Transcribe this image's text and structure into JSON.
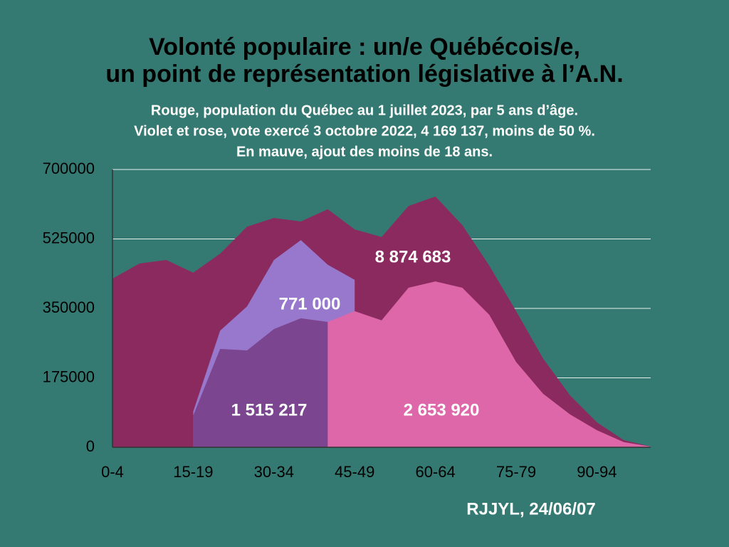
{
  "chart_data": {
    "type": "area",
    "title": [
      "Volonté populaire : un/e Québécois/e,",
      "un point de représentation législative à l’A.N."
    ],
    "subtitle": [
      "Rouge, population du Québec au 1 juillet 2023, par 5 ans d’âge.",
      "Violet et rose, vote exercé 3 octobre 2022, 4 169 137, moins de 50 %.",
      "En mauve, ajout des moins de 18 ans."
    ],
    "credit": "RJJYL, 24/06/07",
    "categories": [
      "0-4",
      null,
      null,
      "15-19",
      null,
      null,
      "30-34",
      null,
      null,
      "45-49",
      null,
      null,
      "60-64",
      null,
      null,
      "75-79",
      null,
      null,
      "90-94",
      null,
      null
    ],
    "ylim": [
      0,
      700000
    ],
    "yticks": [
      0,
      175000,
      350000,
      525000,
      700000
    ],
    "grid": true,
    "series": [
      {
        "color": "#8b2a5e",
        "values": [
          425000,
          463000,
          472000,
          440000,
          488000,
          556000,
          578000,
          569000,
          600000,
          549000,
          530000,
          608000,
          632000,
          560000,
          458000,
          343000,
          224000,
          131000,
          63000,
          18000,
          2000
        ],
        "label": "8 874 683"
      },
      {
        "color": "#9878cc",
        "values": [
          null,
          null,
          null,
          90000,
          294000,
          355000,
          472000,
          522000,
          460000,
          422000,
          null,
          null,
          null,
          null,
          null,
          null,
          null,
          null,
          null,
          null,
          null
        ],
        "label": "771 000"
      },
      {
        "color": "#7b4590",
        "values": [
          null,
          null,
          null,
          80000,
          248000,
          244000,
          298000,
          325000,
          316000,
          null,
          null,
          null,
          null,
          null,
          null,
          null,
          null,
          null,
          null,
          null,
          null
        ],
        "label": "1 515 217"
      },
      {
        "color": "#dd67a8",
        "values": [
          null,
          null,
          null,
          null,
          null,
          null,
          null,
          null,
          316000,
          343000,
          320000,
          402000,
          418000,
          402000,
          334000,
          215000,
          135000,
          83000,
          43000,
          13000,
          2000
        ],
        "label": "2 653 920"
      }
    ]
  }
}
